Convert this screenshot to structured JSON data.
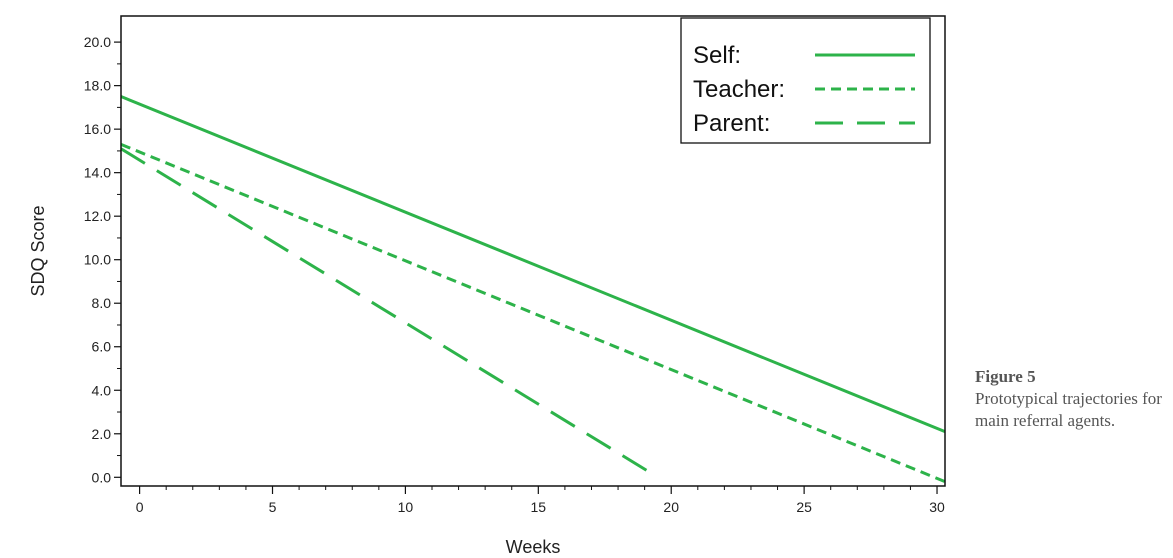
{
  "chart_data": {
    "type": "line",
    "xlabel": "Weeks",
    "ylabel": "SDQ Score",
    "xlim": [
      -0.7,
      30.3
    ],
    "ylim": [
      -0.4,
      21.2
    ],
    "xticks": [
      "0",
      "5",
      "10",
      "15",
      "20",
      "25",
      "30"
    ],
    "yticks": [
      "0.0",
      "2.0",
      "4.0",
      "6.0",
      "8.0",
      "10.0",
      "12.0",
      "14.0",
      "16.0",
      "18.0",
      "20.0"
    ],
    "grid": false,
    "legend_position": "top-right",
    "series": [
      {
        "name": "Self:",
        "style": "solid",
        "x": [
          -0.7,
          30.3
        ],
        "y": [
          17.5,
          2.1
        ]
      },
      {
        "name": "Teacher:",
        "style": "dashed",
        "x": [
          -0.7,
          30.3
        ],
        "y": [
          15.3,
          -0.2
        ]
      },
      {
        "name": "Parent:",
        "style": "long-dashed",
        "x": [
          -0.7,
          19.5
        ],
        "y": [
          15.1,
          0.0
        ]
      }
    ],
    "line_color": "#2db34a"
  },
  "caption": {
    "label": "Figure 5",
    "text": "Prototypical trajectories for main referral agents."
  }
}
